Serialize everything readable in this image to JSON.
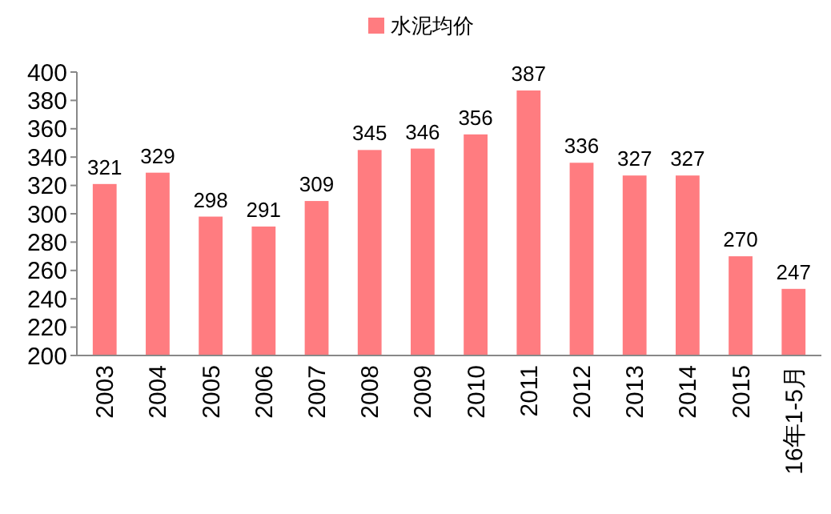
{
  "chart_data": {
    "type": "bar",
    "categories": [
      "2003",
      "2004",
      "2005",
      "2006",
      "2007",
      "2008",
      "2009",
      "2010",
      "2011",
      "2012",
      "2013",
      "2014",
      "2015",
      "16年1-5月"
    ],
    "series": [
      {
        "name": "水泥均价",
        "color": "#ff7c80",
        "values": [
          321,
          329,
          298,
          291,
          309,
          345,
          346,
          356,
          387,
          336,
          327,
          327,
          270,
          247
        ]
      }
    ],
    "ylim": [
      200,
      400
    ],
    "yticks": [
      200,
      220,
      240,
      260,
      280,
      300,
      320,
      340,
      360,
      380,
      400
    ],
    "data_labels": true,
    "legend": "top",
    "grid": false
  }
}
